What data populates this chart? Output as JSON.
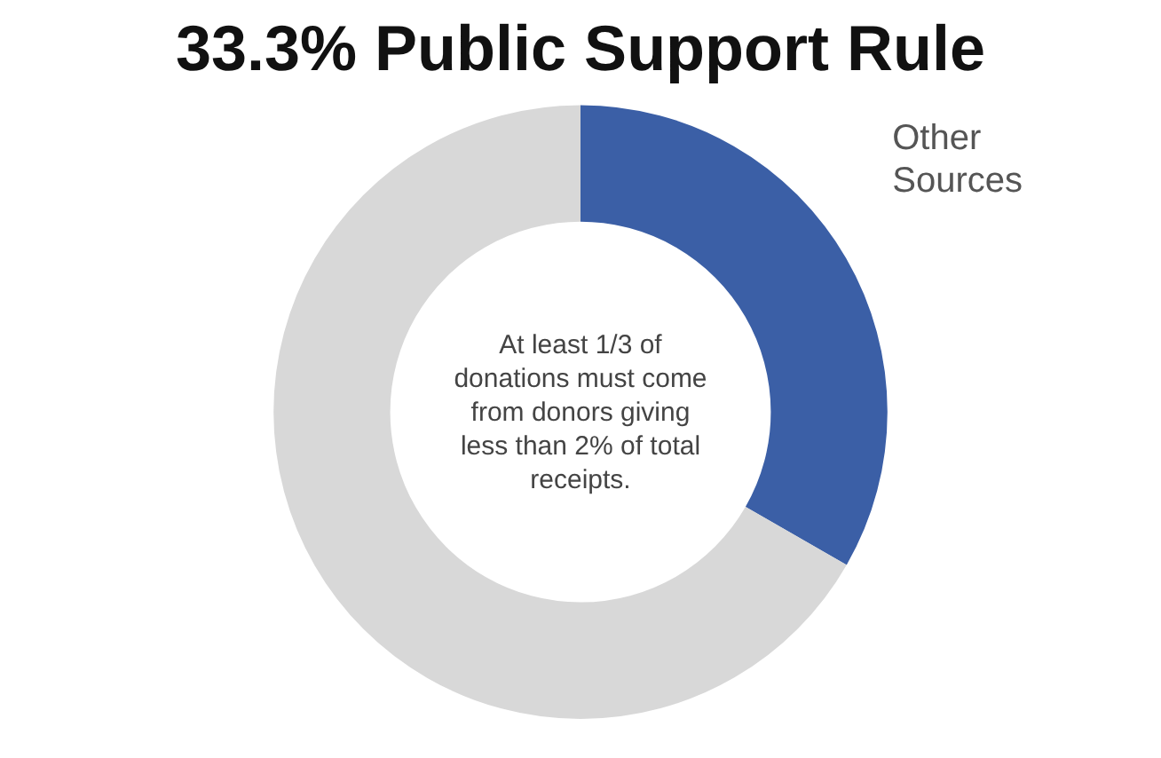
{
  "chart_data": {
    "type": "donut",
    "title": "33.3% Public Support Rule",
    "categories": [
      "Other Sources",
      null
    ],
    "values": [
      33.3,
      66.7
    ],
    "colors": [
      "#3b5fa6",
      "#d8d8d8"
    ],
    "annotations": [
      "At least 1/3 of donations must come from donors giving less than 2% of total receipts."
    ],
    "legend": false
  }
}
